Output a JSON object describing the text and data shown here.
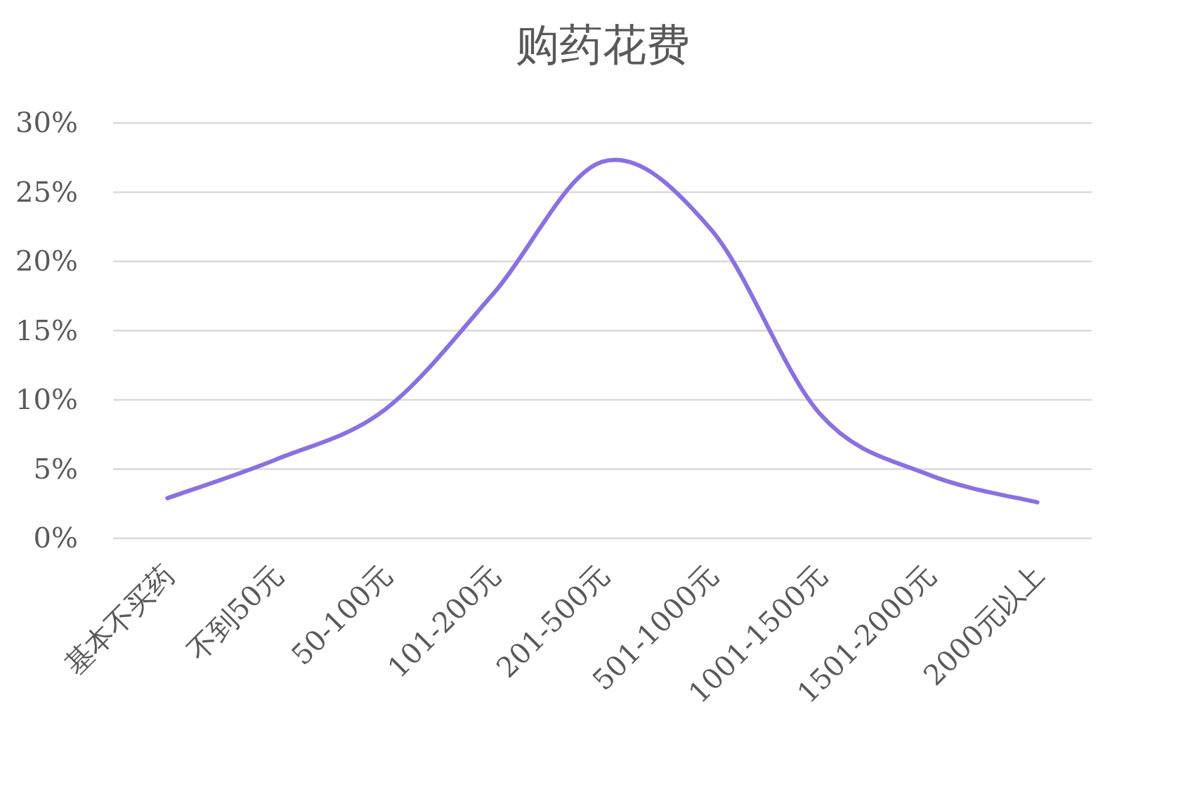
{
  "chart_data": {
    "type": "line",
    "title": "购药花费",
    "categories": [
      "基本不买药",
      "不到50元",
      "50-100元",
      "101-200元",
      "201-500元",
      "501-1000元",
      "1001-1500元",
      "1501-2000元",
      "2000元以上"
    ],
    "values": [
      2.9,
      5.7,
      9.3,
      17.7,
      27.2,
      22.3,
      9.0,
      4.6,
      2.6
    ],
    "color": "#8a70e0",
    "ylim": [
      0,
      30
    ],
    "yticks": [
      {
        "value": 0,
        "label": "0%"
      },
      {
        "value": 5,
        "label": "5%"
      },
      {
        "value": 10,
        "label": "10%"
      },
      {
        "value": 15,
        "label": "15%"
      },
      {
        "value": 20,
        "label": "20%"
      },
      {
        "value": 25,
        "label": "25%"
      },
      {
        "value": 30,
        "label": "30%"
      }
    ],
    "grid": "y"
  }
}
